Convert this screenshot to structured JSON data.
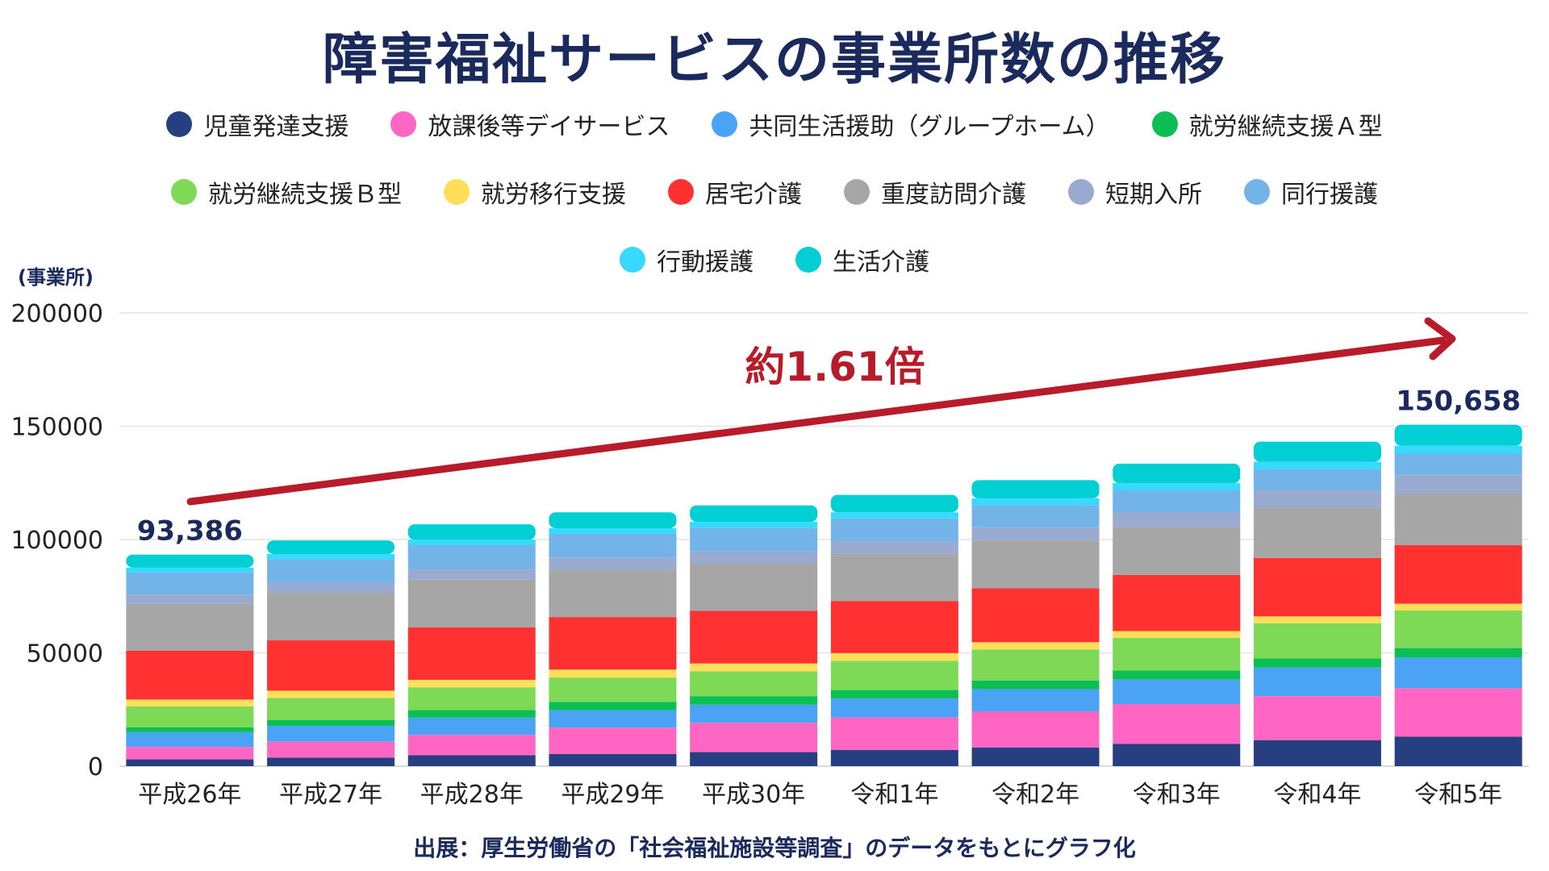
{
  "title": "障害福祉サービスの事業所数の推移",
  "unit_label": "(事業所)",
  "source_note": "出展：厚生労働省の「社会福祉施設等調査」のデータをもとにグラフ化",
  "chart_data": {
    "type": "stacked-bar",
    "title": "障害福祉サービスの事業所数の推移",
    "ylabel": "(事業所)",
    "ylim": [
      0,
      200000
    ],
    "yticks": [
      0,
      50000,
      100000,
      150000,
      200000
    ],
    "categories": [
      "平成26年",
      "平成27年",
      "平成28年",
      "平成29年",
      "平成30年",
      "令和1年",
      "令和2年",
      "令和3年",
      "令和4年",
      "令和5年"
    ],
    "series": [
      {
        "name": "児童発達支援",
        "color": "#253f80",
        "values": [
          3000,
          3800,
          4800,
          5400,
          6200,
          7200,
          8200,
          9800,
          11500,
          13000
        ]
      },
      {
        "name": "放課後等デイサービス",
        "color": "#ff66c4",
        "values": [
          5500,
          7000,
          9000,
          11600,
          12900,
          14300,
          16000,
          17600,
          19400,
          21400
        ]
      },
      {
        "name": "共同生活援助（グループホーム）",
        "color": "#4ba3f5",
        "values": [
          6500,
          7000,
          7600,
          7700,
          8000,
          8300,
          9800,
          10800,
          12600,
          13500
        ]
      },
      {
        "name": "就労継続支援Ａ型",
        "color": "#0cbf55",
        "values": [
          2200,
          2600,
          3400,
          3700,
          3800,
          3800,
          3800,
          4000,
          4000,
          4200
        ]
      },
      {
        "name": "就労継続支援Ｂ型",
        "color": "#7ed957",
        "values": [
          9200,
          9700,
          10000,
          10700,
          11000,
          12900,
          13700,
          14400,
          15600,
          16600
        ]
      },
      {
        "name": "就労移行支援",
        "color": "#ffde59",
        "values": [
          3000,
          3200,
          3300,
          3500,
          3400,
          3400,
          3200,
          3000,
          3000,
          3000
        ]
      },
      {
        "name": "居宅介護",
        "color": "#ff3131",
        "values": [
          21600,
          22200,
          23200,
          23200,
          23200,
          23000,
          23800,
          24800,
          25800,
          25800
        ]
      },
      {
        "name": "重度訪問介護",
        "color": "#a6a6a6",
        "values": [
          20600,
          21000,
          21000,
          21000,
          21000,
          20800,
          21000,
          21200,
          22300,
          22800
        ]
      },
      {
        "name": "短期入所",
        "color": "#9aabd1",
        "values": [
          4100,
          4300,
          4700,
          5300,
          5400,
          5600,
          5900,
          6500,
          7500,
          8400
        ]
      },
      {
        "name": "同行援護",
        "color": "#73b4e8",
        "values": [
          9800,
          10500,
          10500,
          10400,
          10300,
          10000,
          9800,
          9600,
          9300,
          9200
        ]
      },
      {
        "name": "行動援護",
        "color": "#38d9ff",
        "values": [
          2100,
          2300,
          2400,
          2500,
          2600,
          2700,
          3000,
          3200,
          3300,
          3500
        ]
      },
      {
        "name": "生活介護",
        "color": "#00d0d4",
        "values": [
          5786,
          6000,
          6800,
          7000,
          7300,
          7700,
          8000,
          8600,
          8900,
          9258
        ]
      }
    ],
    "data_labels": [
      {
        "category": "平成26年",
        "text": "93,386"
      },
      {
        "category": "令和5年",
        "text": "150,658"
      }
    ],
    "annotation": {
      "text": "約1.61倍",
      "color": "#b81b2a"
    }
  }
}
